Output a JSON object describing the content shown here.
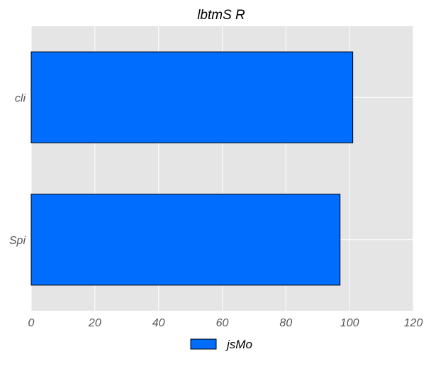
{
  "chart_data": {
    "type": "bar",
    "orientation": "horizontal",
    "title": "lbtmS R",
    "xlabel": "",
    "ylabel": "",
    "categories": [
      "cli",
      "Spi"
    ],
    "series": [
      {
        "name": "jsMo",
        "values": [
          101,
          97
        ]
      }
    ],
    "xlim": [
      0,
      120
    ],
    "xticks": [
      0,
      20,
      40,
      60,
      80,
      100,
      120
    ],
    "grid": true,
    "legend_position": "bottom-center",
    "colors": {
      "bar": "#006dff",
      "bar_edge": "#000000",
      "plot_background": "#e5e5e5",
      "grid": "#ffffff",
      "tick_text": "#555555",
      "title_text": "#000000"
    }
  }
}
